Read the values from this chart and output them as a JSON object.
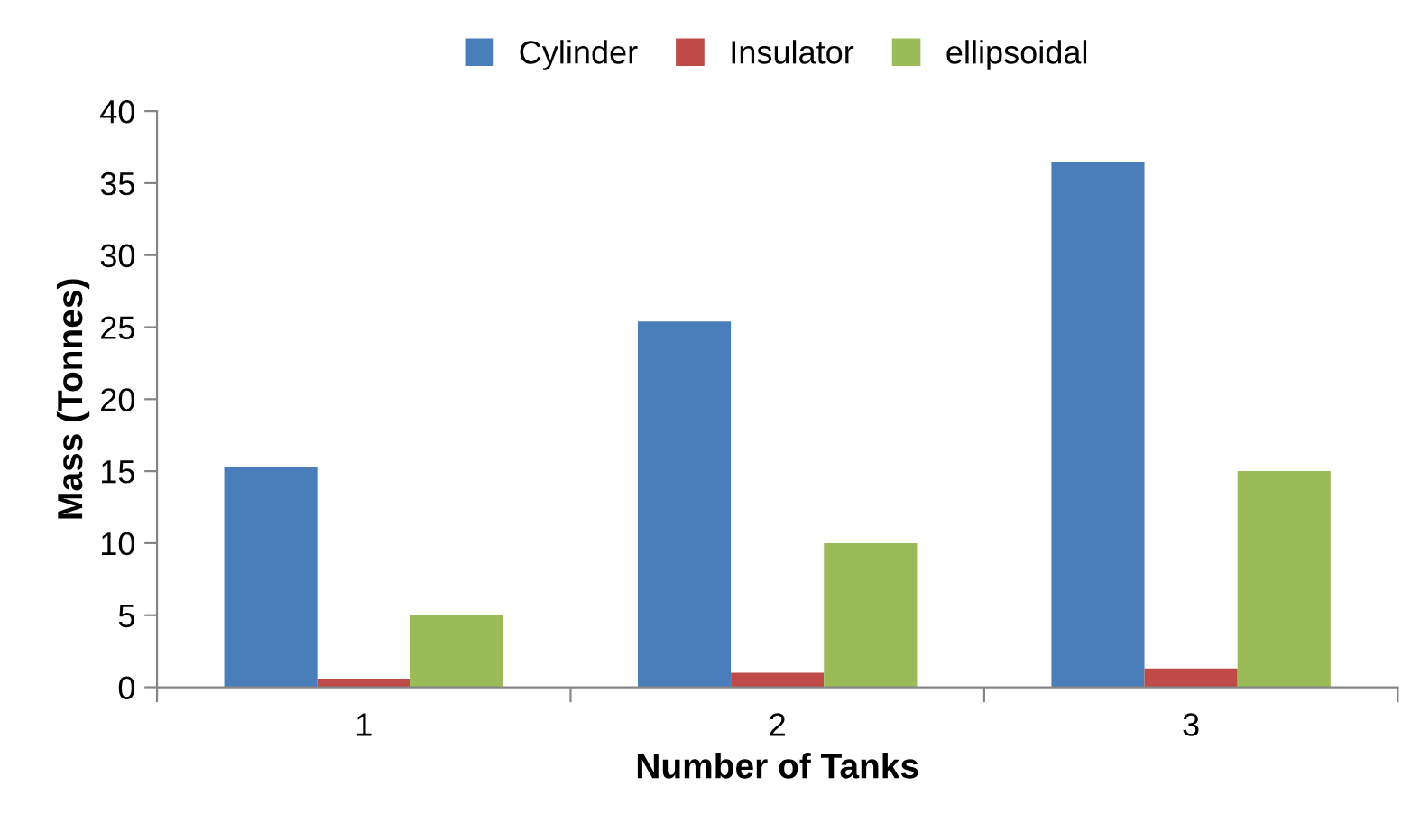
{
  "chart_data": {
    "type": "bar",
    "xlabel": "Number of Tanks",
    "ylabel": "Mass (Tonnes)",
    "categories": [
      "1",
      "2",
      "3"
    ],
    "series": [
      {
        "name": "Cylinder",
        "color": "#4a7ebb",
        "values": [
          15.3,
          25.4,
          36.5
        ]
      },
      {
        "name": "Insulator",
        "color": "#be4b48",
        "values": [
          0.6,
          1.0,
          1.3
        ]
      },
      {
        "name": "ellipsoidal",
        "color": "#9bbb59",
        "values": [
          5,
          10,
          15
        ]
      }
    ],
    "ylim": [
      0,
      40
    ],
    "yticks": [
      0,
      5,
      10,
      15,
      20,
      25,
      30,
      35,
      40
    ],
    "grid": false,
    "legend": "top"
  }
}
